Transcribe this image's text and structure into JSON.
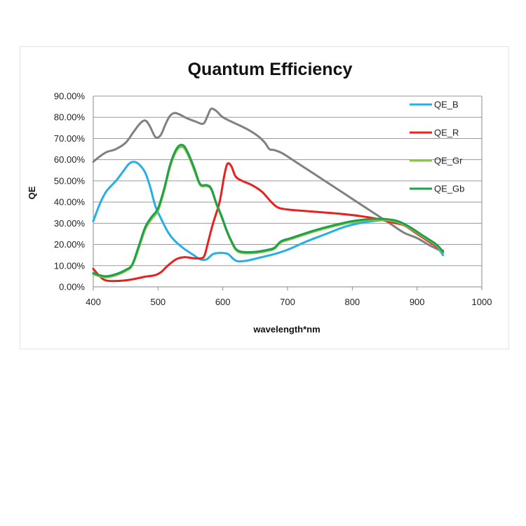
{
  "chart_data": {
    "type": "line",
    "title": "Quantum Efficiency",
    "xlabel": "wavelength*nm",
    "ylabel": "QE",
    "xlim": [
      400,
      1000
    ],
    "ylim": [
      0,
      90
    ],
    "x_ticks": [
      "400",
      "500",
      "600",
      "700",
      "800",
      "900",
      "1000"
    ],
    "y_ticks": [
      "0.00%",
      "10.00%",
      "20.00%",
      "30.00%",
      "40.00%",
      "50.00%",
      "60.00%",
      "70.00%",
      "80.00%",
      "90.00%"
    ],
    "grid": "horizontal",
    "legend_position": "right",
    "series": [
      {
        "name": "",
        "color": "#808080",
        "points": [
          [
            400,
            59
          ],
          [
            410,
            61.5
          ],
          [
            420,
            63.5
          ],
          [
            435,
            65
          ],
          [
            450,
            68
          ],
          [
            462,
            73
          ],
          [
            472,
            77
          ],
          [
            480,
            78.5
          ],
          [
            487,
            76
          ],
          [
            495,
            71
          ],
          [
            500,
            70.5
          ],
          [
            505,
            72
          ],
          [
            512,
            77
          ],
          [
            518,
            80.5
          ],
          [
            525,
            82
          ],
          [
            532,
            81.5
          ],
          [
            545,
            79.5
          ],
          [
            558,
            78
          ],
          [
            570,
            77
          ],
          [
            577,
            81
          ],
          [
            582,
            84
          ],
          [
            590,
            83
          ],
          [
            598,
            80.5
          ],
          [
            606,
            79
          ],
          [
            620,
            77
          ],
          [
            640,
            74
          ],
          [
            655,
            71
          ],
          [
            665,
            68
          ],
          [
            672,
            65
          ],
          [
            680,
            64.5
          ],
          [
            692,
            63
          ],
          [
            710,
            59.5
          ],
          [
            740,
            53.5
          ],
          [
            770,
            47.5
          ],
          [
            800,
            41.5
          ],
          [
            830,
            35.5
          ],
          [
            860,
            29.5
          ],
          [
            880,
            25.5
          ],
          [
            900,
            23
          ],
          [
            920,
            19.5
          ],
          [
            940,
            16.5
          ]
        ]
      },
      {
        "name": "QE_B",
        "color": "#25aee8",
        "points": [
          [
            400,
            31
          ],
          [
            410,
            39
          ],
          [
            420,
            45
          ],
          [
            435,
            50
          ],
          [
            445,
            54
          ],
          [
            455,
            58
          ],
          [
            462,
            59
          ],
          [
            470,
            58
          ],
          [
            480,
            54
          ],
          [
            488,
            47
          ],
          [
            496,
            38
          ],
          [
            505,
            32
          ],
          [
            515,
            26
          ],
          [
            525,
            22
          ],
          [
            540,
            18
          ],
          [
            555,
            15
          ],
          [
            565,
            13
          ],
          [
            575,
            13
          ],
          [
            585,
            15.5
          ],
          [
            597,
            16
          ],
          [
            608,
            15.5
          ],
          [
            617,
            13
          ],
          [
            625,
            12
          ],
          [
            640,
            12.5
          ],
          [
            660,
            14
          ],
          [
            680,
            15.5
          ],
          [
            700,
            17.5
          ],
          [
            730,
            21.5
          ],
          [
            760,
            25
          ],
          [
            790,
            28.5
          ],
          [
            820,
            30.5
          ],
          [
            850,
            31.5
          ],
          [
            870,
            31
          ],
          [
            890,
            28
          ],
          [
            910,
            23.5
          ],
          [
            930,
            19
          ],
          [
            940,
            15
          ]
        ]
      },
      {
        "name": "QE_R",
        "color": "#e82020",
        "points": [
          [
            400,
            8.5
          ],
          [
            410,
            5
          ],
          [
            420,
            3
          ],
          [
            440,
            2.8
          ],
          [
            460,
            3.5
          ],
          [
            480,
            4.8
          ],
          [
            495,
            5.5
          ],
          [
            505,
            7
          ],
          [
            515,
            10
          ],
          [
            528,
            13
          ],
          [
            540,
            14
          ],
          [
            555,
            13.5
          ],
          [
            567,
            13.5
          ],
          [
            572,
            15
          ],
          [
            578,
            22
          ],
          [
            585,
            30
          ],
          [
            595,
            40
          ],
          [
            602,
            52
          ],
          [
            607,
            58
          ],
          [
            613,
            57
          ],
          [
            620,
            52
          ],
          [
            630,
            50
          ],
          [
            645,
            48
          ],
          [
            660,
            45
          ],
          [
            675,
            40
          ],
          [
            685,
            37.5
          ],
          [
            700,
            36.5
          ],
          [
            740,
            35.5
          ],
          [
            780,
            34.5
          ],
          [
            810,
            33.5
          ],
          [
            840,
            32
          ],
          [
            860,
            30.5
          ],
          [
            880,
            29
          ],
          [
            900,
            25
          ],
          [
            920,
            21
          ],
          [
            940,
            17
          ]
        ]
      },
      {
        "name": "QE_Gr",
        "color": "#8bc34a",
        "points": [
          [
            400,
            6
          ],
          [
            410,
            5
          ],
          [
            420,
            4.5
          ],
          [
            435,
            5.5
          ],
          [
            450,
            7.5
          ],
          [
            460,
            10
          ],
          [
            470,
            18
          ],
          [
            480,
            27
          ],
          [
            490,
            32
          ],
          [
            500,
            36
          ],
          [
            510,
            46
          ],
          [
            518,
            56
          ],
          [
            525,
            62
          ],
          [
            532,
            65.5
          ],
          [
            540,
            65.5
          ],
          [
            548,
            61
          ],
          [
            556,
            55
          ],
          [
            565,
            48
          ],
          [
            575,
            47.5
          ],
          [
            582,
            46
          ],
          [
            590,
            39
          ],
          [
            598,
            33
          ],
          [
            605,
            27
          ],
          [
            612,
            22
          ],
          [
            620,
            17.5
          ],
          [
            630,
            16
          ],
          [
            650,
            16
          ],
          [
            670,
            17
          ],
          [
            680,
            18
          ],
          [
            690,
            21
          ],
          [
            705,
            22.5
          ],
          [
            740,
            26
          ],
          [
            770,
            28.5
          ],
          [
            800,
            30.5
          ],
          [
            830,
            31.5
          ],
          [
            850,
            31.5
          ],
          [
            870,
            30.5
          ],
          [
            890,
            27.5
          ],
          [
            910,
            23.5
          ],
          [
            930,
            19.5
          ],
          [
            940,
            16
          ]
        ]
      },
      {
        "name": "QE_Gb",
        "color": "#1fa14a",
        "points": [
          [
            400,
            6.5
          ],
          [
            410,
            5.5
          ],
          [
            420,
            5
          ],
          [
            435,
            6
          ],
          [
            450,
            8
          ],
          [
            460,
            10.5
          ],
          [
            470,
            19
          ],
          [
            480,
            28
          ],
          [
            490,
            33
          ],
          [
            500,
            37
          ],
          [
            510,
            47
          ],
          [
            518,
            57
          ],
          [
            525,
            63
          ],
          [
            532,
            66.5
          ],
          [
            540,
            66.5
          ],
          [
            548,
            62
          ],
          [
            556,
            56
          ],
          [
            565,
            48.5
          ],
          [
            575,
            48
          ],
          [
            582,
            46.5
          ],
          [
            590,
            39.5
          ],
          [
            598,
            33.5
          ],
          [
            605,
            27.5
          ],
          [
            612,
            22.5
          ],
          [
            620,
            18
          ],
          [
            630,
            16.5
          ],
          [
            650,
            16.5
          ],
          [
            670,
            17.5
          ],
          [
            680,
            18.5
          ],
          [
            690,
            21.5
          ],
          [
            705,
            23
          ],
          [
            740,
            26.5
          ],
          [
            770,
            29
          ],
          [
            800,
            31
          ],
          [
            830,
            32
          ],
          [
            850,
            32
          ],
          [
            870,
            31
          ],
          [
            890,
            28
          ],
          [
            910,
            24
          ],
          [
            930,
            20
          ],
          [
            940,
            16.5
          ]
        ]
      }
    ]
  }
}
